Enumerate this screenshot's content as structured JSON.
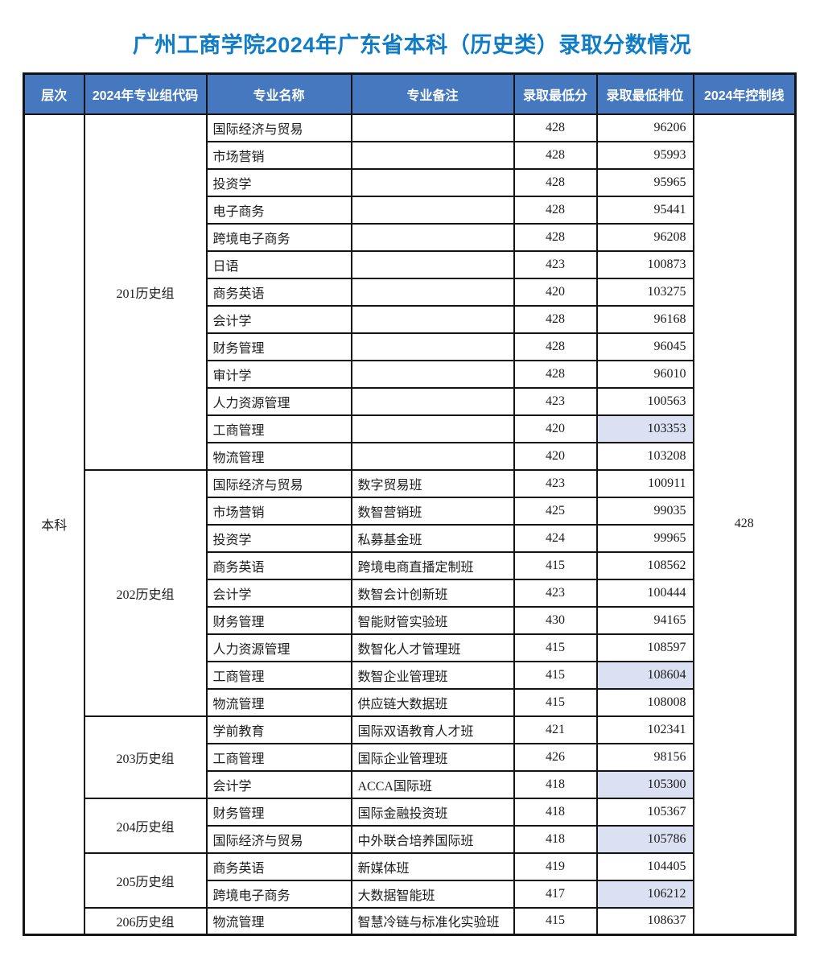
{
  "title": "广州工商学院2024年广东省本科（历史类）录取分数情况",
  "colors": {
    "title_blue": "#0f7cc5",
    "header_bg": "#4678c0",
    "highlight_bg": "#dbe0f2",
    "border": "#141414"
  },
  "table": {
    "headers": [
      "层次",
      "2024年专业组代码",
      "专业名称",
      "专业备注",
      "录取最低分",
      "录取最低排位",
      "2024年控制线"
    ],
    "level": "本科",
    "control_line": "428",
    "groups": [
      {
        "code": "201历史组",
        "rows": [
          {
            "major": "国际经济与贸易",
            "note": "",
            "score": "428",
            "rank": "96206",
            "highlight": false
          },
          {
            "major": "市场营销",
            "note": "",
            "score": "428",
            "rank": "95993",
            "highlight": false
          },
          {
            "major": "投资学",
            "note": "",
            "score": "428",
            "rank": "95965",
            "highlight": false
          },
          {
            "major": "电子商务",
            "note": "",
            "score": "428",
            "rank": "95441",
            "highlight": false
          },
          {
            "major": "跨境电子商务",
            "note": "",
            "score": "428",
            "rank": "96208",
            "highlight": false
          },
          {
            "major": "日语",
            "note": "",
            "score": "423",
            "rank": "100873",
            "highlight": false
          },
          {
            "major": "商务英语",
            "note": "",
            "score": "420",
            "rank": "103275",
            "highlight": false
          },
          {
            "major": "会计学",
            "note": "",
            "score": "428",
            "rank": "96168",
            "highlight": false
          },
          {
            "major": "财务管理",
            "note": "",
            "score": "428",
            "rank": "96045",
            "highlight": false
          },
          {
            "major": "审计学",
            "note": "",
            "score": "428",
            "rank": "96010",
            "highlight": false
          },
          {
            "major": "人力资源管理",
            "note": "",
            "score": "423",
            "rank": "100563",
            "highlight": false
          },
          {
            "major": "工商管理",
            "note": "",
            "score": "420",
            "rank": "103353",
            "highlight": true
          },
          {
            "major": "物流管理",
            "note": "",
            "score": "420",
            "rank": "103208",
            "highlight": false
          }
        ]
      },
      {
        "code": "202历史组",
        "rows": [
          {
            "major": "国际经济与贸易",
            "note": "数字贸易班",
            "score": "423",
            "rank": "100911",
            "highlight": false
          },
          {
            "major": "市场营销",
            "note": "数智营销班",
            "score": "425",
            "rank": "99035",
            "highlight": false
          },
          {
            "major": "投资学",
            "note": "私募基金班",
            "score": "424",
            "rank": "99965",
            "highlight": false
          },
          {
            "major": "商务英语",
            "note": "跨境电商直播定制班",
            "score": "415",
            "rank": "108562",
            "highlight": false
          },
          {
            "major": "会计学",
            "note": "数智会计创新班",
            "score": "423",
            "rank": "100444",
            "highlight": false
          },
          {
            "major": "财务管理",
            "note": "智能财管实验班",
            "score": "430",
            "rank": "94165",
            "highlight": false
          },
          {
            "major": "人力资源管理",
            "note": "数智化人才管理班",
            "score": "415",
            "rank": "108597",
            "highlight": false
          },
          {
            "major": "工商管理",
            "note": "数智企业管理班",
            "score": "415",
            "rank": "108604",
            "highlight": true
          },
          {
            "major": "物流管理",
            "note": "供应链大数据班",
            "score": "415",
            "rank": "108008",
            "highlight": false
          }
        ]
      },
      {
        "code": "203历史组",
        "rows": [
          {
            "major": "学前教育",
            "note": "国际双语教育人才班",
            "score": "421",
            "rank": "102341",
            "highlight": false
          },
          {
            "major": "工商管理",
            "note": "国际企业管理班",
            "score": "426",
            "rank": "98156",
            "highlight": false
          },
          {
            "major": "会计学",
            "note": "ACCA国际班",
            "score": "418",
            "rank": "105300",
            "highlight": true
          }
        ]
      },
      {
        "code": "204历史组",
        "rows": [
          {
            "major": "财务管理",
            "note": "国际金融投资班",
            "score": "418",
            "rank": "105367",
            "highlight": false
          },
          {
            "major": "国际经济与贸易",
            "note": "中外联合培养国际班",
            "score": "418",
            "rank": "105786",
            "highlight": true
          }
        ]
      },
      {
        "code": "205历史组",
        "rows": [
          {
            "major": "商务英语",
            "note": "新媒体班",
            "score": "419",
            "rank": "104405",
            "highlight": false
          },
          {
            "major": "跨境电子商务",
            "note": "大数据智能班",
            "score": "417",
            "rank": "106212",
            "highlight": true
          }
        ]
      },
      {
        "code": "206历史组",
        "rows": [
          {
            "major": "物流管理",
            "note": "智慧冷链与标准化实验班",
            "score": "415",
            "rank": "108637",
            "highlight": false
          }
        ]
      }
    ]
  }
}
